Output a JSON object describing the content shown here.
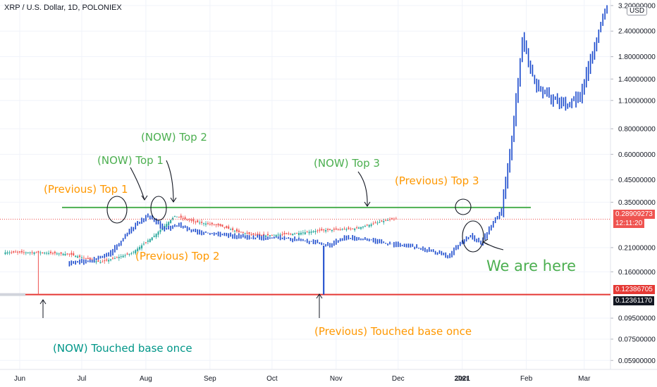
{
  "header": {
    "title": "XRP / U.S. Dollar, 1D, POLONIEX",
    "currency": "USD"
  },
  "chart_data": {
    "type": "bar",
    "symbol": "XRP / U.S. Dollar",
    "interval": "1D",
    "exchange": "POLONIEX",
    "y_scale": "log",
    "ylim": [
      0.0555,
      3.3
    ],
    "y_ticks": [
      "3.20000000",
      "2.40000000",
      "1.80000000",
      "1.40000000",
      "1.10000000",
      "0.80000000",
      "0.60000000",
      "0.45000000",
      "0.35000000",
      "0.21000000",
      "0.16000000",
      "0.09500000",
      "0.07500000",
      "0.05900000"
    ],
    "x_ticks": [
      "Jun",
      "Jul",
      "Aug",
      "Sep",
      "Oct",
      "Nov",
      "Dec",
      "2021",
      "Jan",
      "Feb",
      "Mar"
    ],
    "price_labels": {
      "last_price": "0.28909273",
      "countdown": "12:11:20",
      "support_1": "0.12386705",
      "support_2": "0.12361170"
    },
    "horizontal_lines": [
      {
        "name": "resistance",
        "price": 0.33,
        "color": "#4caf50"
      },
      {
        "name": "support",
        "price": 0.1238,
        "color": "#e53935"
      }
    ],
    "current_series": [
      {
        "date": "2020-06-25",
        "close": 0.176
      },
      {
        "date": "2020-07-05",
        "close": 0.181
      },
      {
        "date": "2020-07-15",
        "close": 0.198
      },
      {
        "date": "2020-07-25",
        "close": 0.26
      },
      {
        "date": "2020-08-02",
        "close": 0.3
      },
      {
        "date": "2020-08-10",
        "close": 0.26
      },
      {
        "date": "2020-08-17",
        "close": 0.27
      },
      {
        "date": "2020-08-25",
        "close": 0.25
      },
      {
        "date": "2020-09-05",
        "close": 0.245
      },
      {
        "date": "2020-09-20",
        "close": 0.235
      },
      {
        "date": "2020-10-05",
        "close": 0.235
      },
      {
        "date": "2020-10-20",
        "close": 0.225
      },
      {
        "date": "2020-10-28",
        "close": 0.215
      },
      {
        "date": "2020-11-05",
        "close": 0.235
      },
      {
        "date": "2020-11-15",
        "close": 0.232
      },
      {
        "date": "2020-11-25",
        "close": 0.22
      },
      {
        "date": "2020-12-05",
        "close": 0.215
      },
      {
        "date": "2020-12-15",
        "close": 0.205
      },
      {
        "date": "2020-12-25",
        "close": 0.19
      },
      {
        "date": "2020-12-31",
        "close": 0.22
      },
      {
        "date": "2021-01-05",
        "close": 0.24
      },
      {
        "date": "2021-01-10",
        "close": 0.22
      },
      {
        "date": "2021-01-15",
        "close": 0.27
      },
      {
        "date": "2021-01-20",
        "close": 0.32
      },
      {
        "date": "2021-01-25",
        "close": 0.7
      },
      {
        "date": "2021-01-30",
        "close": 2.2
      },
      {
        "date": "2021-02-05",
        "close": 1.35
      },
      {
        "date": "2021-02-12",
        "close": 1.15
      },
      {
        "date": "2021-02-20",
        "close": 1.05
      },
      {
        "date": "2021-02-27",
        "close": 1.15
      },
      {
        "date": "2021-03-05",
        "close": 1.9
      },
      {
        "date": "2021-03-12",
        "close": 3.2
      }
    ],
    "previous_series": [
      {
        "date": "2020-05-25",
        "close": 0.199
      },
      {
        "date": "2020-06-10",
        "close": 0.199
      },
      {
        "date": "2020-06-25",
        "close": 0.195
      },
      {
        "date": "2020-07-10",
        "close": 0.178
      },
      {
        "date": "2020-07-25",
        "close": 0.197
      },
      {
        "date": "2020-08-05",
        "close": 0.24
      },
      {
        "date": "2020-08-15",
        "close": 0.3
      },
      {
        "date": "2020-08-25",
        "close": 0.28
      },
      {
        "date": "2020-09-05",
        "close": 0.27
      },
      {
        "date": "2020-09-15",
        "close": 0.25
      },
      {
        "date": "2020-09-25",
        "close": 0.24
      },
      {
        "date": "2020-10-10",
        "close": 0.245
      },
      {
        "date": "2020-10-25",
        "close": 0.255
      },
      {
        "date": "2020-11-10",
        "close": 0.26
      },
      {
        "date": "2020-11-25",
        "close": 0.285
      },
      {
        "date": "2020-11-30",
        "close": 0.29
      }
    ],
    "annotations": [
      {
        "text": "(NOW) Top 2",
        "color": "#4caf50"
      },
      {
        "text": "(NOW) Top 1",
        "color": "#4caf50"
      },
      {
        "text": "(Previous) Top 1",
        "color": "#ff9800"
      },
      {
        "text": "(NOW) Top 3",
        "color": "#4caf50"
      },
      {
        "text": "(Previous) Top 3",
        "color": "#ff9800"
      },
      {
        "text": "(Previous) Top 2",
        "color": "#ff9800"
      },
      {
        "text": "We are here",
        "color": "#4caf50"
      },
      {
        "text": "(Previous) Touched base once",
        "color": "#ff9800"
      },
      {
        "text": "(NOW) Touched base once",
        "color": "#009688"
      }
    ],
    "colors": {
      "current_series": "#1848cc",
      "previous_series_up": "#26a69a",
      "previous_series_down": "#ef5350",
      "resistance": "#4caf50",
      "support": "#e53935"
    }
  }
}
